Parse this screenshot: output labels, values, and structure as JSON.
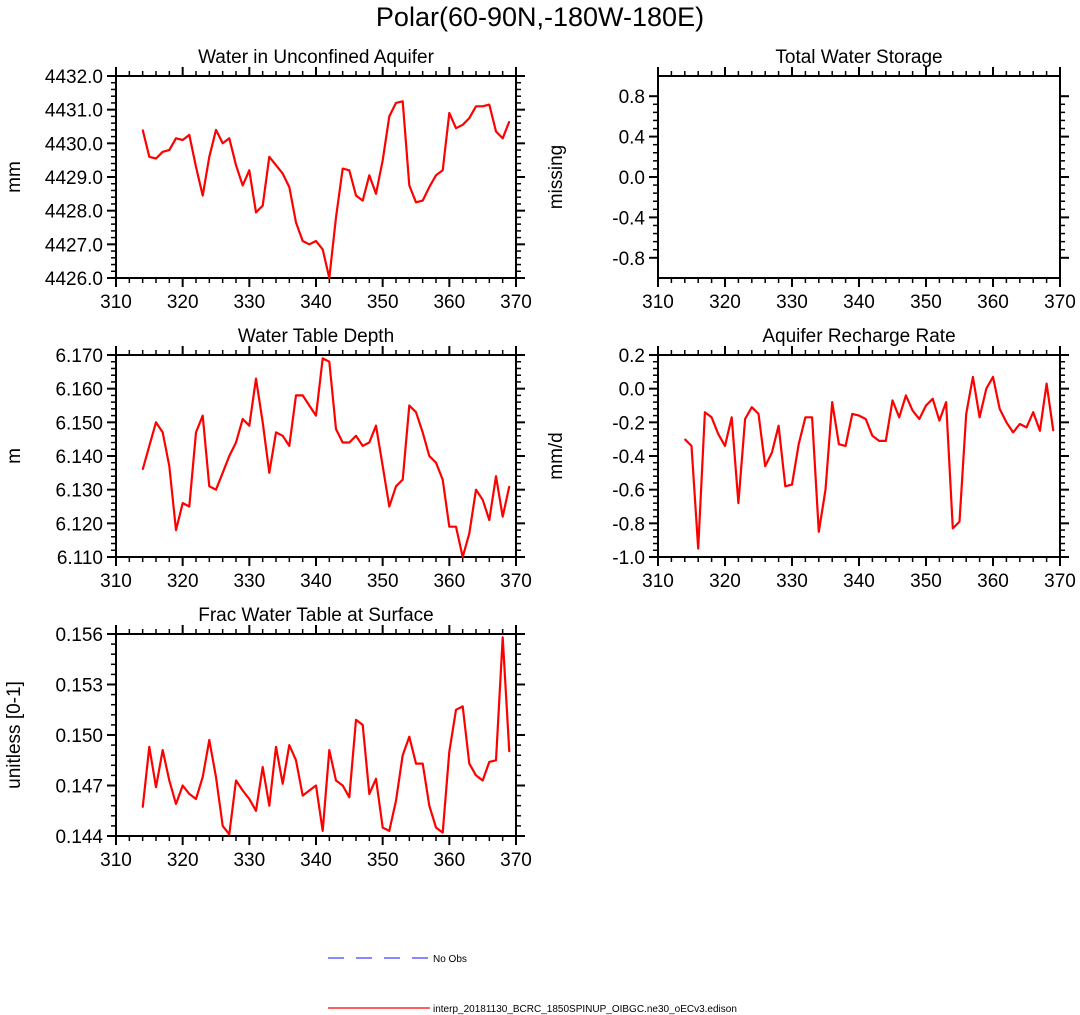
{
  "figure": {
    "title": "Polar(60-90N,-180W-180E)"
  },
  "chart_data": [
    {
      "id": "p1",
      "type": "line",
      "title": "Water in Unconfined Aquifer",
      "ylabel": "mm",
      "xlabel": "",
      "xlim": [
        310,
        370
      ],
      "ylim": [
        4426.0,
        4432.0
      ],
      "xticks": [
        "310",
        "320",
        "330",
        "340",
        "350",
        "360",
        "370"
      ],
      "yticks": [
        "4426.0",
        "4427.0",
        "4428.0",
        "4429.0",
        "4430.0",
        "4431.0",
        "4432.0"
      ],
      "series": [
        {
          "name": "interp_20181130_BCRC_1850SPINUP_OIBGC.ne30_oECv3.edison",
          "color": "#ff0000",
          "x": [
            314,
            315,
            316,
            317,
            318,
            319,
            320,
            321,
            322,
            323,
            324,
            325,
            326,
            327,
            328,
            329,
            330,
            331,
            332,
            333,
            334,
            335,
            336,
            337,
            338,
            339,
            340,
            341,
            342,
            343,
            344,
            345,
            346,
            347,
            348,
            349,
            350,
            351,
            352,
            353,
            354,
            355,
            356,
            357,
            358,
            359,
            360,
            361,
            362,
            363,
            364,
            365,
            366,
            367,
            368,
            369
          ],
          "values": [
            4430.4,
            4429.6,
            4429.55,
            4429.75,
            4429.8,
            4430.15,
            4430.1,
            4430.25,
            4429.3,
            4428.45,
            4429.6,
            4430.4,
            4430.0,
            4430.15,
            4429.35,
            4428.75,
            4429.2,
            4427.95,
            4428.15,
            4429.6,
            4429.35,
            4429.1,
            4428.7,
            4427.65,
            4427.1,
            4427.0,
            4427.1,
            4426.85,
            4426.0,
            4427.8,
            4429.25,
            4429.2,
            4428.45,
            4428.3,
            4429.05,
            4428.5,
            4429.5,
            4430.8,
            4431.2,
            4431.25,
            4428.75,
            4428.25,
            4428.3,
            4428.7,
            4429.05,
            4429.2,
            4430.9,
            4430.45,
            4430.55,
            4430.75,
            4431.1,
            4431.1,
            4431.15,
            4430.35,
            4430.15,
            4430.65
          ]
        }
      ]
    },
    {
      "id": "p2",
      "type": "line",
      "title": "Total Water Storage",
      "ylabel": "missing",
      "xlabel": "",
      "xlim": [
        310,
        370
      ],
      "ylim": [
        -1.0,
        1.0
      ],
      "xticks": [
        "310",
        "320",
        "330",
        "340",
        "350",
        "360",
        "370"
      ],
      "yticks": [
        "-0.8",
        "-0.4",
        "0.0",
        "0.4",
        "0.8"
      ],
      "yticks_values": [
        -0.8,
        -0.4,
        0.0,
        0.4,
        0.8
      ],
      "series": []
    },
    {
      "id": "p3",
      "type": "line",
      "title": "Water Table Depth",
      "ylabel": "m",
      "xlabel": "",
      "xlim": [
        310,
        370
      ],
      "ylim": [
        6.11,
        6.17
      ],
      "xticks": [
        "310",
        "320",
        "330",
        "340",
        "350",
        "360",
        "370"
      ],
      "yticks": [
        "6.110",
        "6.120",
        "6.130",
        "6.140",
        "6.150",
        "6.160",
        "6.170"
      ],
      "series": [
        {
          "name": "interp_20181130_BCRC_1850SPINUP_OIBGC.ne30_oECv3.edison",
          "color": "#ff0000",
          "x": [
            314,
            315,
            316,
            317,
            318,
            319,
            320,
            321,
            322,
            323,
            324,
            325,
            326,
            327,
            328,
            329,
            330,
            331,
            332,
            333,
            334,
            335,
            336,
            337,
            338,
            339,
            340,
            341,
            342,
            343,
            344,
            345,
            346,
            347,
            348,
            349,
            350,
            351,
            352,
            353,
            354,
            355,
            356,
            357,
            358,
            359,
            360,
            361,
            362,
            363,
            364,
            365,
            366,
            367,
            368,
            369
          ],
          "values": [
            6.136,
            6.143,
            6.15,
            6.147,
            6.137,
            6.118,
            6.126,
            6.125,
            6.147,
            6.152,
            6.131,
            6.13,
            6.135,
            6.14,
            6.144,
            6.151,
            6.149,
            6.163,
            6.15,
            6.135,
            6.147,
            6.146,
            6.143,
            6.158,
            6.158,
            6.155,
            6.152,
            6.169,
            6.168,
            6.148,
            6.144,
            6.144,
            6.146,
            6.143,
            6.144,
            6.149,
            6.137,
            6.125,
            6.131,
            6.133,
            6.155,
            6.153,
            6.147,
            6.14,
            6.138,
            6.133,
            6.119,
            6.119,
            6.11,
            6.117,
            6.13,
            6.127,
            6.121,
            6.134,
            6.122,
            6.131
          ]
        }
      ]
    },
    {
      "id": "p4",
      "type": "line",
      "title": "Aquifer Recharge Rate",
      "ylabel": "mm/d",
      "xlabel": "",
      "xlim": [
        310,
        370
      ],
      "ylim": [
        -1.0,
        0.2
      ],
      "xticks": [
        "310",
        "320",
        "330",
        "340",
        "350",
        "360",
        "370"
      ],
      "yticks": [
        "-1.0",
        "-0.8",
        "-0.6",
        "-0.4",
        "-0.2",
        "0.0",
        "0.2"
      ],
      "series": [
        {
          "name": "interp_20181130_BCRC_1850SPINUP_OIBGC.ne30_oECv3.edison",
          "color": "#ff0000",
          "x": [
            314,
            315,
            316,
            317,
            318,
            319,
            320,
            321,
            322,
            323,
            324,
            325,
            326,
            327,
            328,
            329,
            330,
            331,
            332,
            333,
            334,
            335,
            336,
            337,
            338,
            339,
            340,
            341,
            342,
            343,
            344,
            345,
            346,
            347,
            348,
            349,
            350,
            351,
            352,
            353,
            354,
            355,
            356,
            357,
            358,
            359,
            360,
            361,
            362,
            363,
            364,
            365,
            366,
            367,
            368,
            369
          ],
          "values": [
            -0.3,
            -0.34,
            -0.95,
            -0.14,
            -0.17,
            -0.27,
            -0.34,
            -0.17,
            -0.68,
            -0.18,
            -0.11,
            -0.15,
            -0.46,
            -0.38,
            -0.22,
            -0.58,
            -0.57,
            -0.33,
            -0.17,
            -0.17,
            -0.85,
            -0.6,
            -0.08,
            -0.33,
            -0.34,
            -0.15,
            -0.16,
            -0.18,
            -0.28,
            -0.31,
            -0.31,
            -0.07,
            -0.17,
            -0.04,
            -0.13,
            -0.18,
            -0.1,
            -0.06,
            -0.19,
            -0.08,
            -0.83,
            -0.79,
            -0.15,
            0.07,
            -0.17,
            0.0,
            0.07,
            -0.12,
            -0.2,
            -0.26,
            -0.21,
            -0.23,
            -0.14,
            -0.25,
            0.03,
            -0.25
          ]
        }
      ]
    },
    {
      "id": "p5",
      "type": "line",
      "title": "Frac Water Table at Surface",
      "ylabel": "unitless [0-1]",
      "xlabel": "",
      "xlim": [
        310,
        370
      ],
      "ylim": [
        0.144,
        0.156
      ],
      "xticks": [
        "310",
        "320",
        "330",
        "340",
        "350",
        "360",
        "370"
      ],
      "yticks": [
        "0.144",
        "0.147",
        "0.150",
        "0.153",
        "0.156"
      ],
      "series": [
        {
          "name": "interp_20181130_BCRC_1850SPINUP_OIBGC.ne30_oECv3.edison",
          "color": "#ff0000",
          "x": [
            314,
            315,
            316,
            317,
            318,
            319,
            320,
            321,
            322,
            323,
            324,
            325,
            326,
            327,
            328,
            329,
            330,
            331,
            332,
            333,
            334,
            335,
            336,
            337,
            338,
            339,
            340,
            341,
            342,
            343,
            344,
            345,
            346,
            347,
            348,
            349,
            350,
            351,
            352,
            353,
            354,
            355,
            356,
            357,
            358,
            359,
            360,
            361,
            362,
            363,
            364,
            365,
            366,
            367,
            368,
            369
          ],
          "values": [
            0.1457,
            0.1493,
            0.1469,
            0.1491,
            0.1473,
            0.1459,
            0.147,
            0.1465,
            0.1462,
            0.1475,
            0.1497,
            0.1475,
            0.1446,
            0.1441,
            0.1473,
            0.1467,
            0.1462,
            0.1455,
            0.1481,
            0.1458,
            0.1493,
            0.1471,
            0.1494,
            0.1485,
            0.1464,
            0.1467,
            0.147,
            0.1443,
            0.1491,
            0.1473,
            0.147,
            0.1463,
            0.1509,
            0.1506,
            0.1465,
            0.1474,
            0.1445,
            0.1443,
            0.1461,
            0.1488,
            0.1499,
            0.1483,
            0.1483,
            0.1458,
            0.1445,
            0.1442,
            0.149,
            0.1515,
            0.1517,
            0.1483,
            0.1476,
            0.1473,
            0.1484,
            0.1485,
            0.1558,
            0.149
          ]
        }
      ]
    }
  ],
  "legend": {
    "items": [
      {
        "label": "No Obs",
        "color": "#4040ff",
        "style": "dashed"
      },
      {
        "label": "interp_20181130_BCRC_1850SPINUP_OIBGC.ne30_oECv3.edison",
        "color": "#ff0000",
        "style": "solid"
      }
    ]
  }
}
